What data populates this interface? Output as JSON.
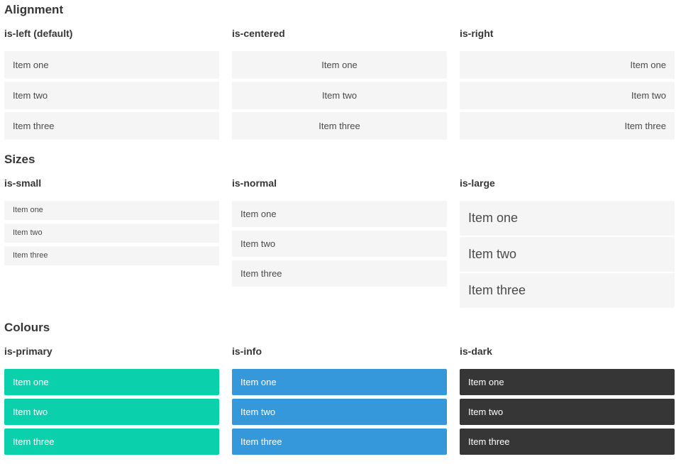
{
  "colors": {
    "primary": "#0bd0ac",
    "info": "#3498db",
    "dark": "#363636",
    "item-bg": "#f5f5f5",
    "item-text": "#4a4a4a",
    "heading-text": "#363636"
  },
  "sections": [
    {
      "title": "Alignment",
      "columns": [
        {
          "heading": "is-left (default)",
          "items": [
            "Item one",
            "Item two",
            "Item three"
          ]
        },
        {
          "heading": "is-centered",
          "items": [
            "Item one",
            "Item two",
            "Item three"
          ]
        },
        {
          "heading": "is-right",
          "items": [
            "Item one",
            "Item two",
            "Item three"
          ]
        }
      ]
    },
    {
      "title": "Sizes",
      "columns": [
        {
          "heading": "is-small",
          "items": [
            "Item one",
            "Item two",
            "Item three"
          ]
        },
        {
          "heading": "is-normal",
          "items": [
            "Item one",
            "Item two",
            "Item three"
          ]
        },
        {
          "heading": "is-large",
          "items": [
            "Item one",
            "Item two",
            "Item three"
          ]
        }
      ]
    },
    {
      "title": "Colours",
      "columns": [
        {
          "heading": "is-primary",
          "items": [
            "Item one",
            "Item two",
            "Item three"
          ]
        },
        {
          "heading": "is-info",
          "items": [
            "Item one",
            "Item two",
            "Item three"
          ]
        },
        {
          "heading": "is-dark",
          "items": [
            "Item one",
            "Item two",
            "Item three"
          ]
        }
      ]
    }
  ]
}
